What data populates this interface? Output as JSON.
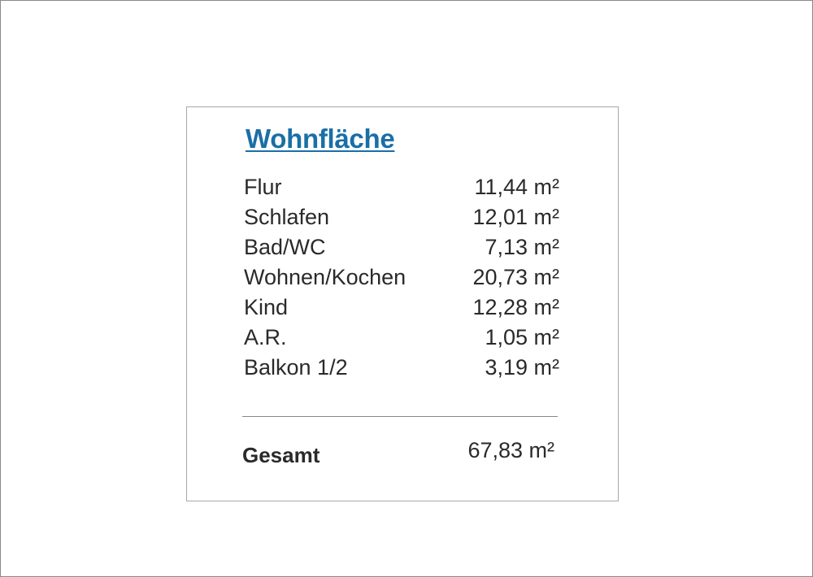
{
  "title": "Wohnfläche",
  "rows": [
    {
      "label": "Flur",
      "value": "11,44 m²"
    },
    {
      "label": "Schlafen",
      "value": "12,01 m²"
    },
    {
      "label": "Bad/WC",
      "value": "7,13 m²"
    },
    {
      "label": "Wohnen/Kochen",
      "value": "20,73 m²"
    },
    {
      "label": "Kind",
      "value": "12,28 m²"
    },
    {
      "label": "A.R.",
      "value": "1,05 m²"
    },
    {
      "label": "Balkon 1/2",
      "value": "3,19 m²"
    }
  ],
  "total": {
    "label": "Gesamt",
    "value": "67,83 m²"
  },
  "colors": {
    "title": "#1a6fa6",
    "text": "#2a2a2a"
  }
}
